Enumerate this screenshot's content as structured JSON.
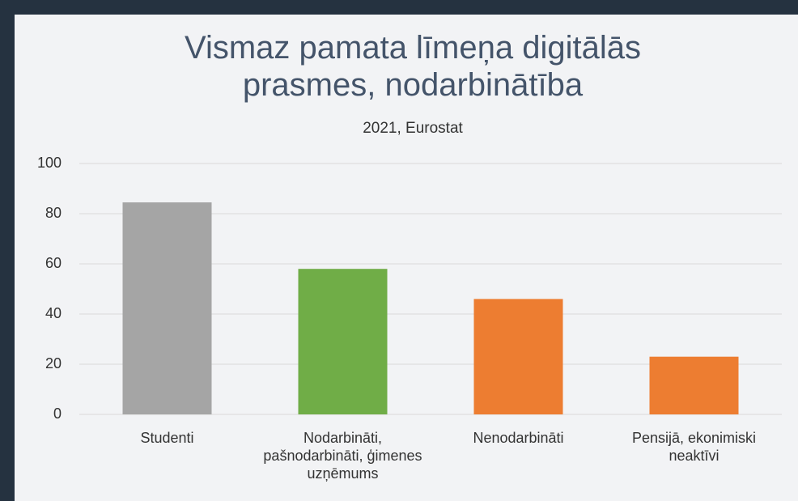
{
  "chart_data": {
    "type": "bar",
    "title": "Vismaz pamata līmeņa digitālās prasmes, nodarbinātība",
    "subtitle": "2021, Eurostat",
    "categories": [
      "Studenti",
      "Nodarbināti, pašnodarbināti, ģimenes uzņēmums",
      "Nenodarbināti",
      "Pensijā, ekonimiski neaktīvi"
    ],
    "values": [
      84.5,
      58,
      46,
      23
    ],
    "colors": [
      "#a5a5a5",
      "#70ad47",
      "#ed7d31",
      "#ed7d31"
    ],
    "ylim": [
      0,
      100
    ],
    "yticks": [
      0,
      20,
      40,
      60,
      80,
      100
    ],
    "grid": true
  }
}
